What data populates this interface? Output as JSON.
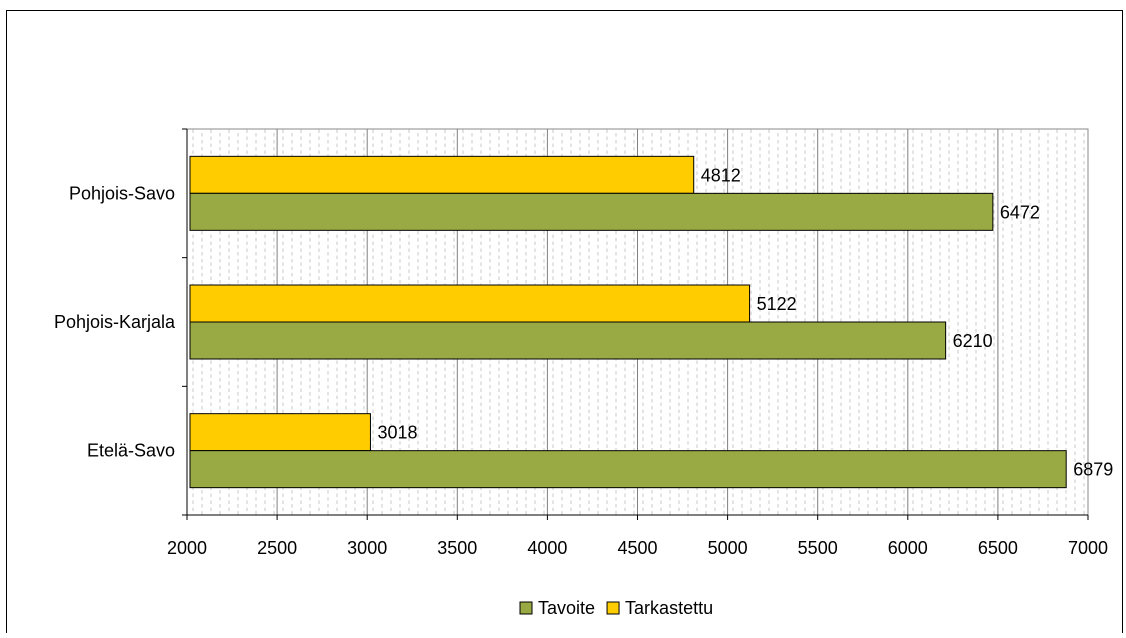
{
  "chart_data": {
    "type": "bar",
    "orientation": "horizontal",
    "title": "",
    "xlabel": "",
    "ylabel": "",
    "categories": [
      "Pohjois-Savo",
      "Pohjois-Karjala",
      "Etelä-Savo"
    ],
    "series": [
      {
        "name": "Tarkastettu",
        "color": "#FFCC00",
        "values": [
          4812,
          5122,
          3018
        ]
      },
      {
        "name": "Tavoite",
        "color": "#99AA44",
        "values": [
          6472,
          6210,
          6879
        ]
      }
    ],
    "xlim": [
      2000,
      7000
    ],
    "xticks": [
      2000,
      2500,
      3000,
      3500,
      4000,
      4500,
      5000,
      5500,
      6000,
      6500,
      7000
    ],
    "grid": true,
    "legend_position": "bottom",
    "legend_order": [
      "Tavoite",
      "Tarkastettu"
    ],
    "data_labels": true
  }
}
